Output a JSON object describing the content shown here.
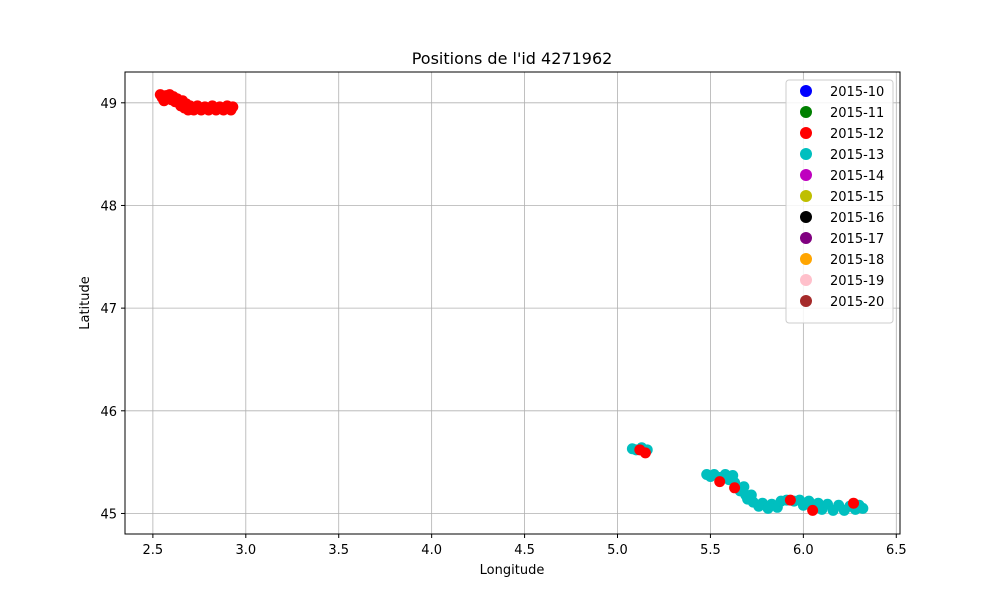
{
  "chart_data": {
    "type": "scatter",
    "title": "Positions de l'id 4271962",
    "xlabel": "Longitude",
    "ylabel": "Latitude",
    "xlim": [
      2.35,
      6.52
    ],
    "ylim": [
      44.8,
      49.3
    ],
    "x_ticks": [
      2.5,
      3.0,
      3.5,
      4.0,
      4.5,
      5.0,
      5.5,
      6.0,
      6.5
    ],
    "x_tick_labels": [
      "2.5",
      "3.0",
      "3.5",
      "4.0",
      "4.5",
      "5.0",
      "5.5",
      "6.0",
      "6.5"
    ],
    "y_ticks": [
      45,
      46,
      47,
      48,
      49
    ],
    "y_tick_labels": [
      "45",
      "46",
      "47",
      "48",
      "49"
    ],
    "grid": true,
    "legend_position": "top-right",
    "series": [
      {
        "name": "2015-10",
        "color": "#0000ff",
        "points": []
      },
      {
        "name": "2015-11",
        "color": "#008000",
        "points": []
      },
      {
        "name": "2015-12",
        "color": "#ff0000",
        "points": [
          [
            2.54,
            49.08
          ],
          [
            2.55,
            49.05
          ],
          [
            2.56,
            49.02
          ],
          [
            2.57,
            49.07
          ],
          [
            2.58,
            49.04
          ],
          [
            2.59,
            49.08
          ],
          [
            2.6,
            49.03
          ],
          [
            2.61,
            49.06
          ],
          [
            2.62,
            49.01
          ],
          [
            2.63,
            49.04
          ],
          [
            2.64,
            49.0
          ],
          [
            2.65,
            48.97
          ],
          [
            2.66,
            49.02
          ],
          [
            2.67,
            48.95
          ],
          [
            2.68,
            48.99
          ],
          [
            2.69,
            48.93
          ],
          [
            2.7,
            48.97
          ],
          [
            2.72,
            48.93
          ],
          [
            2.74,
            48.97
          ],
          [
            2.76,
            48.93
          ],
          [
            2.78,
            48.96
          ],
          [
            2.8,
            48.93
          ],
          [
            2.82,
            48.97
          ],
          [
            2.84,
            48.93
          ],
          [
            2.86,
            48.96
          ],
          [
            2.88,
            48.93
          ],
          [
            2.9,
            48.97
          ],
          [
            2.92,
            48.93
          ],
          [
            2.93,
            48.96
          ],
          [
            5.12,
            45.62
          ],
          [
            5.15,
            45.59
          ],
          [
            5.55,
            45.31
          ],
          [
            5.63,
            45.25
          ],
          [
            5.93,
            45.13
          ],
          [
            6.05,
            45.03
          ],
          [
            6.27,
            45.1
          ]
        ]
      },
      {
        "name": "2015-13",
        "color": "#00bfbf",
        "points": [
          [
            5.08,
            45.63
          ],
          [
            5.1,
            45.62
          ],
          [
            5.13,
            45.64
          ],
          [
            5.16,
            45.62
          ],
          [
            5.48,
            45.38
          ],
          [
            5.5,
            45.36
          ],
          [
            5.52,
            45.38
          ],
          [
            5.55,
            45.35
          ],
          [
            5.58,
            45.38
          ],
          [
            5.6,
            45.33
          ],
          [
            5.62,
            45.37
          ],
          [
            5.63,
            45.3
          ],
          [
            5.64,
            45.26
          ],
          [
            5.66,
            45.22
          ],
          [
            5.68,
            45.26
          ],
          [
            5.69,
            45.18
          ],
          [
            5.7,
            45.14
          ],
          [
            5.72,
            45.18
          ],
          [
            5.73,
            45.11
          ],
          [
            5.76,
            45.07
          ],
          [
            5.78,
            45.1
          ],
          [
            5.81,
            45.05
          ],
          [
            5.83,
            45.09
          ],
          [
            5.86,
            45.06
          ],
          [
            5.88,
            45.12
          ],
          [
            5.91,
            45.13
          ],
          [
            5.95,
            45.12
          ],
          [
            5.98,
            45.13
          ],
          [
            6.0,
            45.08
          ],
          [
            6.03,
            45.12
          ],
          [
            6.05,
            45.05
          ],
          [
            6.08,
            45.1
          ],
          [
            6.1,
            45.04
          ],
          [
            6.13,
            45.09
          ],
          [
            6.16,
            45.03
          ],
          [
            6.19,
            45.08
          ],
          [
            6.22,
            45.03
          ],
          [
            6.25,
            45.07
          ],
          [
            6.28,
            45.04
          ],
          [
            6.3,
            45.08
          ],
          [
            6.32,
            45.05
          ]
        ]
      },
      {
        "name": "2015-14",
        "color": "#bf00bf",
        "points": []
      },
      {
        "name": "2015-15",
        "color": "#bfbf00",
        "points": []
      },
      {
        "name": "2015-16",
        "color": "#000000",
        "points": []
      },
      {
        "name": "2015-17",
        "color": "#800080",
        "points": []
      },
      {
        "name": "2015-18",
        "color": "#ffa500",
        "points": []
      },
      {
        "name": "2015-19",
        "color": "#ffc0cb",
        "points": []
      },
      {
        "name": "2015-20",
        "color": "#a52a2a",
        "points": []
      }
    ]
  }
}
